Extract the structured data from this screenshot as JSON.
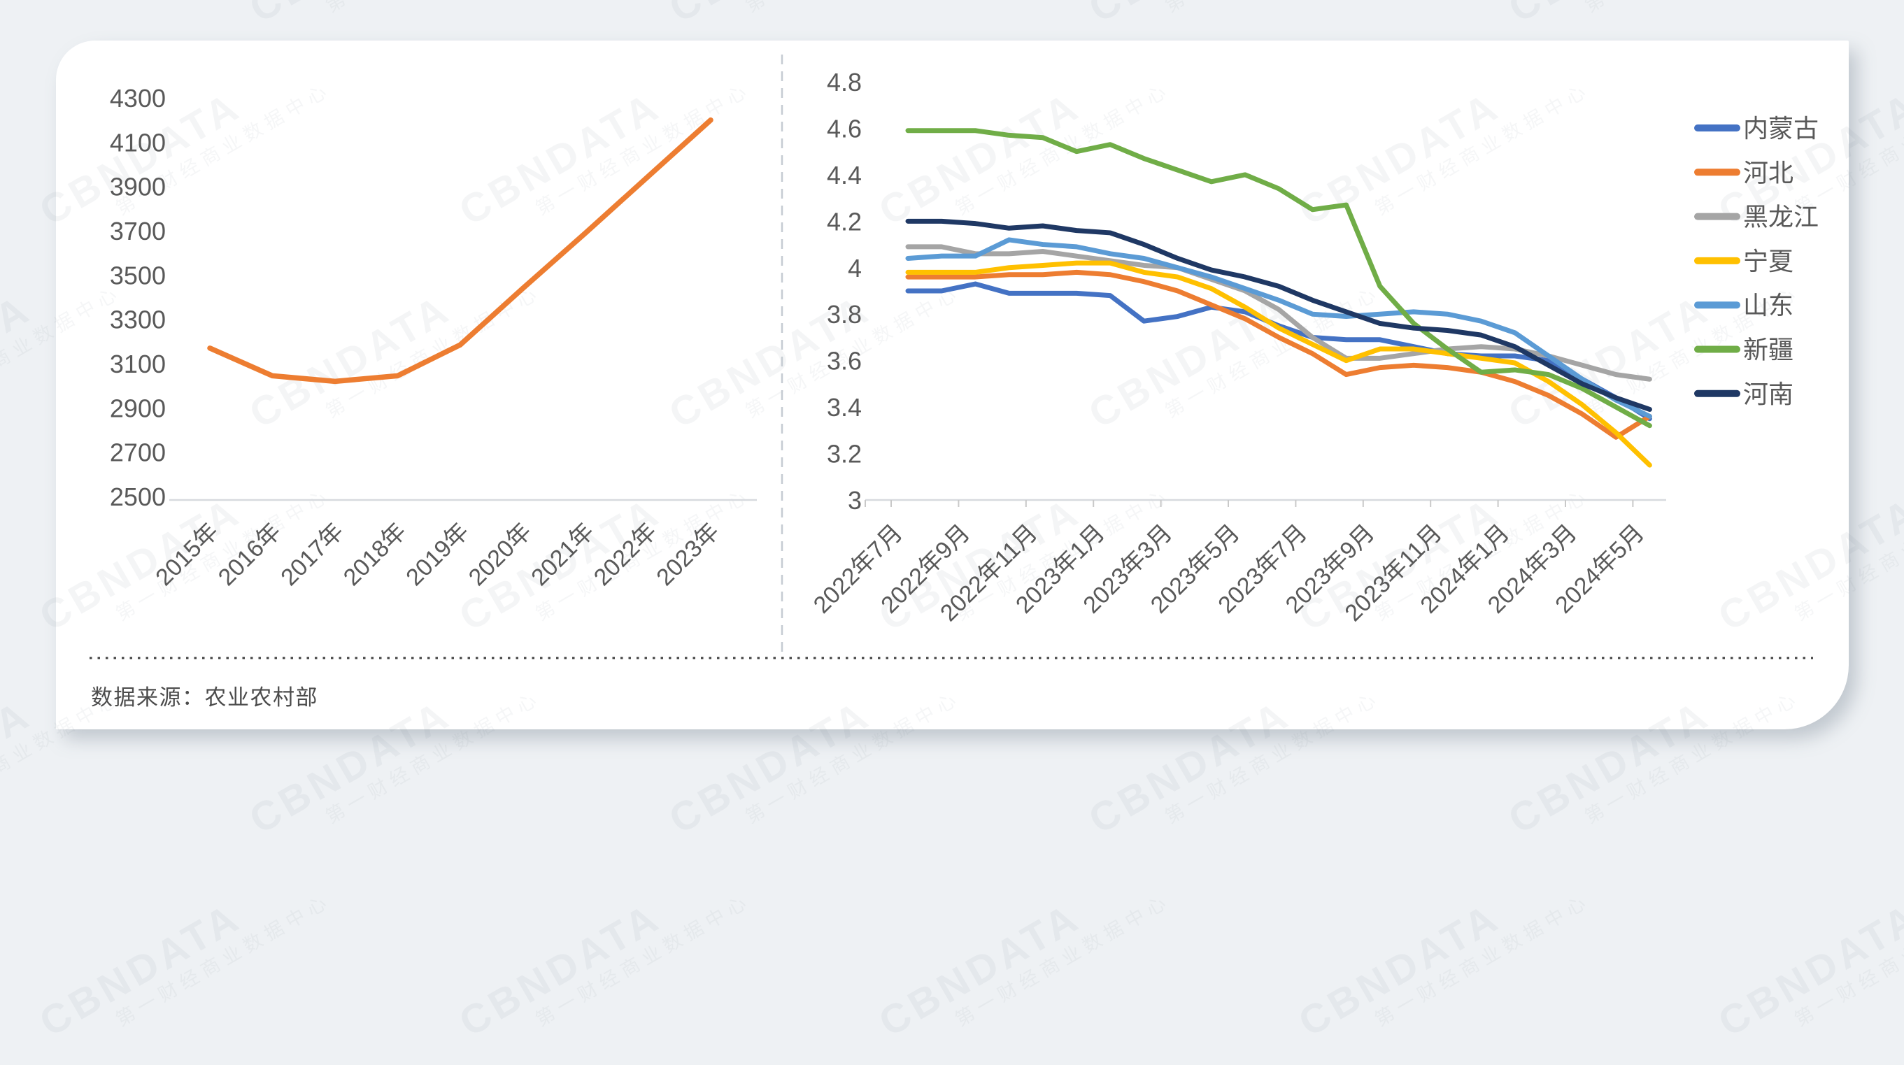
{
  "page": {
    "background": "#eef1f4"
  },
  "watermark": {
    "brand": "CBNDATA",
    "subtitle": "第一财经商业数据中心"
  },
  "footer": {
    "source": "数据来源：农业农村部"
  },
  "styles": {
    "axis_line": "#d7dade",
    "tick": "#c9c9c9",
    "label": "#595959",
    "card_bg": "#ffffff",
    "divider_dash": "#c5cbd2",
    "divider_dots": "#3f3f3f"
  },
  "chart_data": [
    {
      "type": "line",
      "title": "",
      "categories": [
        "2015年",
        "2016年",
        "2017年",
        "2018年",
        "2019年",
        "2020年",
        "2021年",
        "2022年",
        "2023年"
      ],
      "values": [
        3170,
        3045,
        3020,
        3045,
        3185,
        3440,
        3690,
        3945,
        4200
      ],
      "color": "#ed7d31",
      "xlabel": "",
      "ylabel": "",
      "ylim": [
        2500,
        4300
      ],
      "y_ticks": [
        2500,
        2700,
        2900,
        3100,
        3300,
        3500,
        3700,
        3900,
        4100,
        4300
      ],
      "grid": false,
      "legend_position": "none"
    },
    {
      "type": "line",
      "title": "",
      "x_tick_labels": [
        "2022年7月",
        "2022年9月",
        "2022年11月",
        "2023年1月",
        "2023年3月",
        "2023年5月",
        "2023年7月",
        "2023年9月",
        "2023年11月",
        "2024年1月",
        "2024年3月",
        "2024年5月"
      ],
      "points_per_series": 23,
      "xlabel": "",
      "ylabel": "",
      "ylim": [
        3,
        4.8
      ],
      "y_tick_labels": [
        "3",
        "3.2",
        "3.4",
        "3.6",
        "3.8",
        "4",
        "4.2",
        "4.4",
        "4.6",
        "4.8"
      ],
      "grid": false,
      "legend_position": "right",
      "series": [
        {
          "name": "内蒙古",
          "color": "#4472c4",
          "values": [
            3.9,
            3.9,
            3.93,
            3.89,
            3.89,
            3.89,
            3.88,
            3.77,
            3.79,
            3.83,
            3.81,
            3.75,
            3.7,
            3.69,
            3.69,
            3.66,
            3.63,
            3.62,
            3.62,
            3.6,
            3.52,
            3.44,
            3.35
          ]
        },
        {
          "name": "河北",
          "color": "#ed7d31",
          "values": [
            3.96,
            3.96,
            3.96,
            3.97,
            3.97,
            3.98,
            3.97,
            3.94,
            3.9,
            3.84,
            3.78,
            3.7,
            3.63,
            3.54,
            3.57,
            3.58,
            3.57,
            3.55,
            3.51,
            3.45,
            3.37,
            3.27,
            3.36
          ]
        },
        {
          "name": "黑龙江",
          "color": "#a5a5a5",
          "values": [
            4.09,
            4.09,
            4.06,
            4.06,
            4.07,
            4.05,
            4.03,
            4.01,
            4.0,
            3.95,
            3.9,
            3.82,
            3.7,
            3.61,
            3.61,
            3.63,
            3.65,
            3.66,
            3.65,
            3.62,
            3.58,
            3.54,
            3.52
          ]
        },
        {
          "name": "宁夏",
          "color": "#ffc000",
          "values": [
            3.98,
            3.98,
            3.98,
            4.0,
            4.01,
            4.02,
            4.02,
            3.98,
            3.96,
            3.91,
            3.83,
            3.74,
            3.67,
            3.6,
            3.65,
            3.65,
            3.63,
            3.61,
            3.59,
            3.51,
            3.41,
            3.29,
            3.15
          ]
        },
        {
          "name": "山东",
          "color": "#5b9bd5",
          "values": [
            4.04,
            4.05,
            4.05,
            4.12,
            4.1,
            4.09,
            4.06,
            4.04,
            4.0,
            3.96,
            3.91,
            3.86,
            3.8,
            3.79,
            3.8,
            3.81,
            3.8,
            3.77,
            3.72,
            3.62,
            3.52,
            3.43,
            3.36
          ]
        },
        {
          "name": "新疆",
          "color": "#70ad47",
          "values": [
            4.59,
            4.59,
            4.59,
            4.57,
            4.56,
            4.5,
            4.53,
            4.47,
            4.42,
            4.37,
            4.4,
            4.34,
            4.25,
            4.27,
            3.92,
            3.76,
            3.65,
            3.55,
            3.56,
            3.54,
            3.48,
            3.4,
            3.32
          ]
        },
        {
          "name": "河南",
          "color": "#1f3864",
          "values": [
            4.2,
            4.2,
            4.19,
            4.17,
            4.18,
            4.16,
            4.15,
            4.1,
            4.04,
            3.99,
            3.96,
            3.92,
            3.86,
            3.81,
            3.76,
            3.74,
            3.73,
            3.71,
            3.66,
            3.58,
            3.5,
            3.44,
            3.39
          ]
        }
      ]
    }
  ]
}
